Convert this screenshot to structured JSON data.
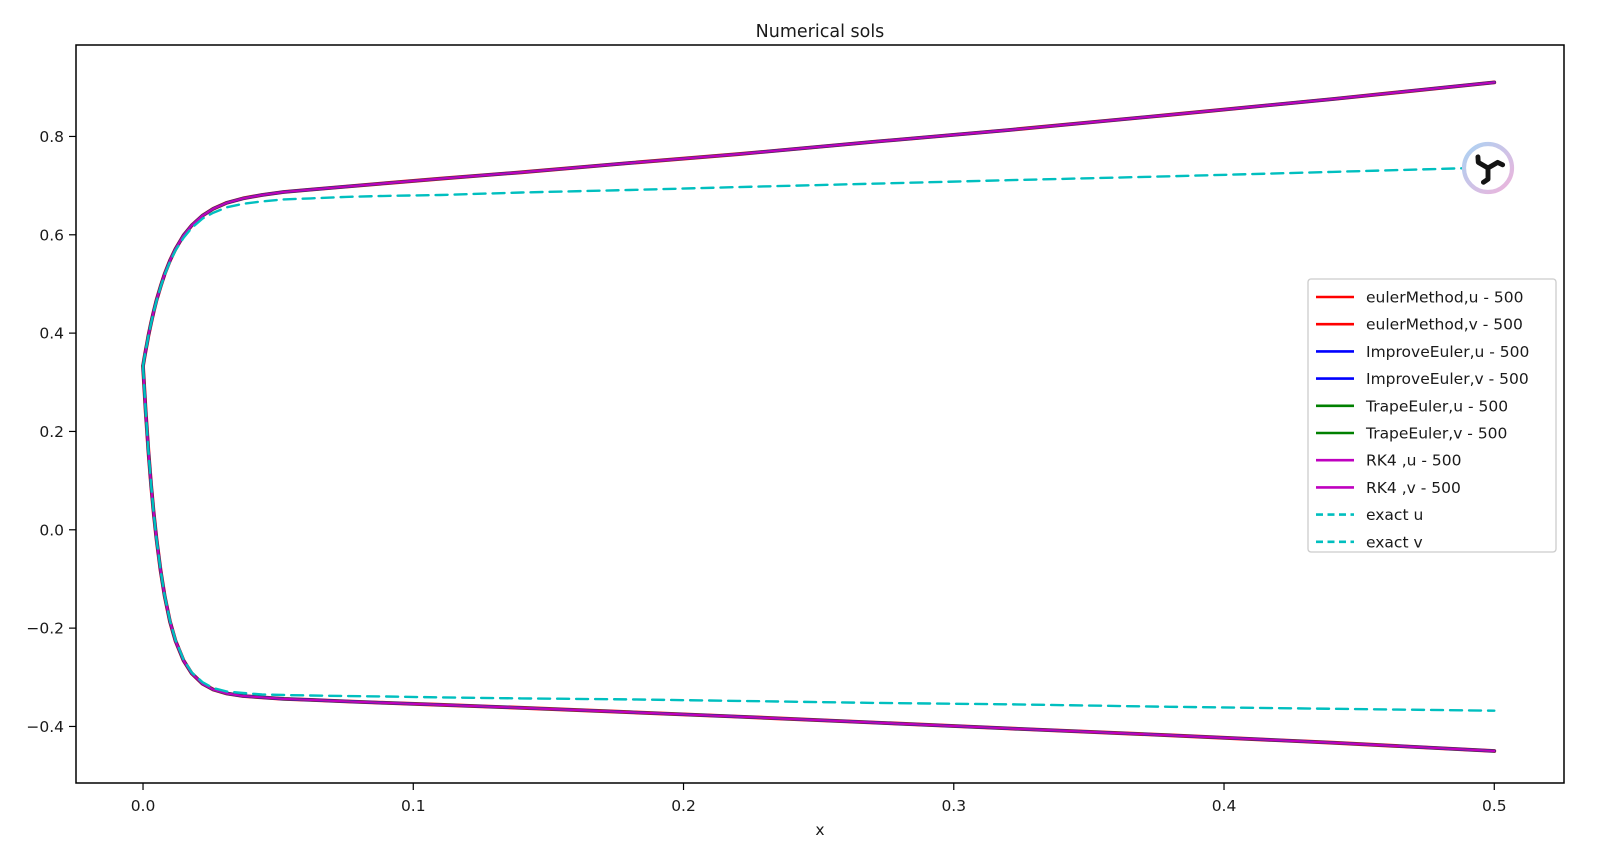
{
  "chart_data": {
    "type": "line",
    "title": "Numerical sols",
    "xlabel": "x",
    "ylabel": "",
    "xlim": [
      -0.0248,
      0.5258
    ],
    "ylim": [
      -0.515,
      0.986
    ],
    "grid": false,
    "legend_position": "center right",
    "xticks": [
      0.0,
      0.1,
      0.2,
      0.3,
      0.4,
      0.5
    ],
    "xtick_labels": [
      "0.0",
      "0.1",
      "0.2",
      "0.3",
      "0.4",
      "0.5"
    ],
    "yticks": [
      -0.4,
      -0.2,
      0.0,
      0.2,
      0.4,
      0.6,
      0.8
    ],
    "ytick_labels": [
      "−0.4",
      "−0.2",
      "0.0",
      "0.2",
      "0.4",
      "0.6",
      "0.8"
    ],
    "x": [
      0,
      0.0005,
      0.001,
      0.0015,
      0.002,
      0.003,
      0.004,
      0.005,
      0.0065,
      0.008,
      0.01,
      0.012,
      0.015,
      0.018,
      0.022,
      0.026,
      0.031,
      0.037,
      0.044,
      0.052,
      0.062,
      0.075,
      0.09,
      0.11,
      0.14,
      0.18,
      0.22,
      0.27,
      0.32,
      0.38,
      0.44,
      0.5
    ],
    "curves": {
      "numerical_u": [
        0.333,
        0.35,
        0.365,
        0.38,
        0.395,
        0.421,
        0.445,
        0.467,
        0.495,
        0.52,
        0.548,
        0.571,
        0.599,
        0.619,
        0.639,
        0.653,
        0.665,
        0.674,
        0.681,
        0.687,
        0.692,
        0.698,
        0.705,
        0.714,
        0.727,
        0.746,
        0.764,
        0.789,
        0.813,
        0.844,
        0.876,
        0.91
      ],
      "numerical_v": [
        0.333,
        0.285,
        0.24,
        0.199,
        0.16,
        0.091,
        0.032,
        -0.019,
        -0.083,
        -0.134,
        -0.187,
        -0.226,
        -0.266,
        -0.292,
        -0.313,
        -0.325,
        -0.333,
        -0.338,
        -0.341,
        -0.344,
        -0.346,
        -0.349,
        -0.352,
        -0.356,
        -0.362,
        -0.371,
        -0.38,
        -0.392,
        -0.404,
        -0.418,
        -0.433,
        -0.45
      ],
      "exact_u": [
        0.333,
        0.35,
        0.365,
        0.38,
        0.394,
        0.42,
        0.444,
        0.465,
        0.494,
        0.518,
        0.545,
        0.568,
        0.594,
        0.614,
        0.633,
        0.645,
        0.656,
        0.663,
        0.668,
        0.672,
        0.674,
        0.677,
        0.679,
        0.681,
        0.686,
        0.691,
        0.697,
        0.704,
        0.711,
        0.719,
        0.728,
        0.737
      ],
      "exact_v": [
        0.333,
        0.285,
        0.24,
        0.199,
        0.16,
        0.092,
        0.032,
        -0.019,
        -0.082,
        -0.133,
        -0.185,
        -0.224,
        -0.264,
        -0.29,
        -0.31,
        -0.322,
        -0.329,
        -0.332,
        -0.335,
        -0.336,
        -0.337,
        -0.338,
        -0.339,
        -0.341,
        -0.343,
        -0.345,
        -0.348,
        -0.352,
        -0.355,
        -0.36,
        -0.364,
        -0.368
      ]
    },
    "series": [
      {
        "label": "eulerMethod,u - 500",
        "color": "#ff0000",
        "dash": false,
        "curve": "numerical_u",
        "width": 3.8
      },
      {
        "label": "eulerMethod,v - 500",
        "color": "#ff0000",
        "dash": false,
        "curve": "numerical_v",
        "width": 3.8
      },
      {
        "label": "ImproveEuler,u - 500",
        "color": "#0000ff",
        "dash": false,
        "curve": "numerical_u",
        "width": 3.2
      },
      {
        "label": "ImproveEuler,v - 500",
        "color": "#0000ff",
        "dash": false,
        "curve": "numerical_v",
        "width": 3.2
      },
      {
        "label": "TrapeEuler,u - 500",
        "color": "#008000",
        "dash": false,
        "curve": "numerical_u",
        "width": 2.8
      },
      {
        "label": "TrapeEuler,v - 500",
        "color": "#008000",
        "dash": false,
        "curve": "numerical_v",
        "width": 2.8
      },
      {
        "label": "RK4 ,u - 500",
        "color": "#bf00bf",
        "dash": false,
        "curve": "numerical_u",
        "width": 2.3
      },
      {
        "label": "RK4 ,v - 500",
        "color": "#bf00bf",
        "dash": false,
        "curve": "numerical_v",
        "width": 2.3
      },
      {
        "label": "exact u",
        "color": "#00bfbf",
        "dash": true,
        "curve": "exact_u",
        "width": 2.4
      },
      {
        "label": "exact v",
        "color": "#00bfbf",
        "dash": true,
        "curve": "exact_v",
        "width": 2.4
      }
    ]
  },
  "legend": {
    "border_color": "#cccccc",
    "background": "#ffffff"
  },
  "watermark_logo": {
    "ring_gradient_start": "#abd3f3",
    "ring_gradient_end": "#eeb3db",
    "glyph_color": "#141414",
    "background": "#ffffff"
  }
}
